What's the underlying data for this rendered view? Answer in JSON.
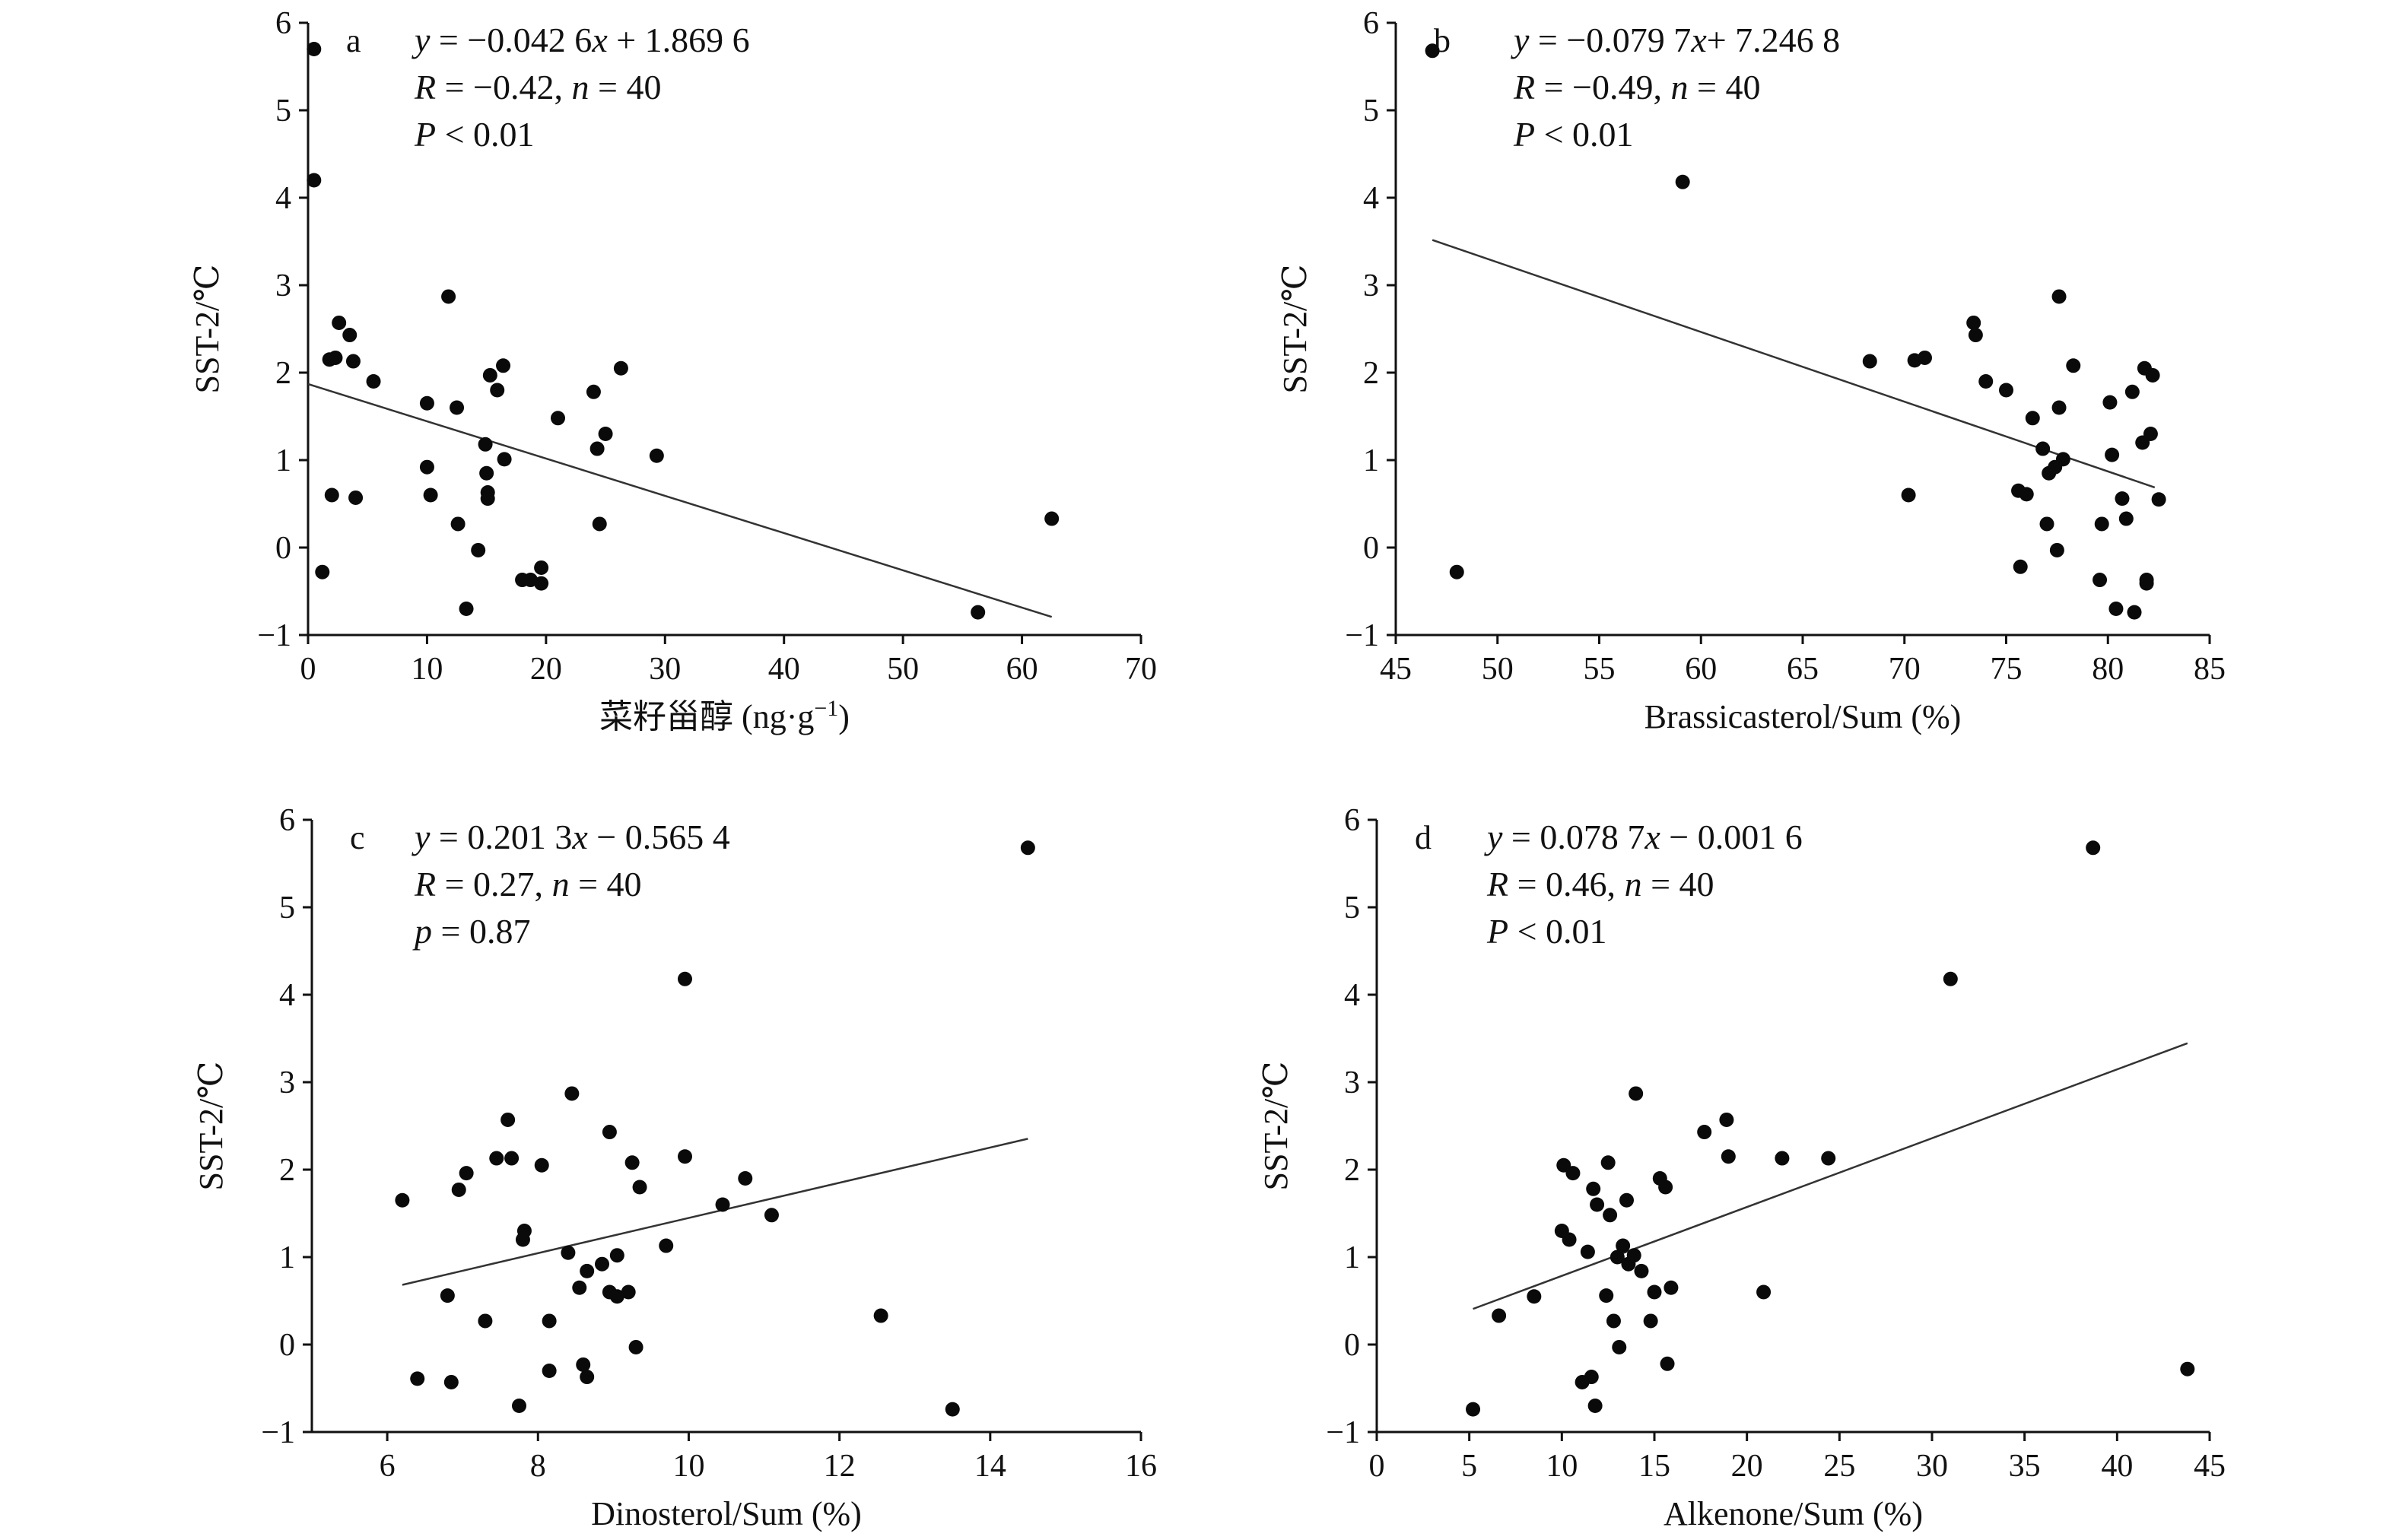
{
  "chart_data": [
    {
      "type": "scatter",
      "panel_label": "a",
      "xlabel": "菜籽甾醇 (ng·g⁻¹)",
      "ylabel": "SST-2/℃",
      "xlim": [
        0,
        70
      ],
      "ylim": [
        -1,
        6
      ],
      "x_ticks": [
        0,
        10,
        20,
        30,
        40,
        50,
        60,
        70
      ],
      "y_ticks": [
        -1,
        0,
        1,
        2,
        3,
        4,
        5,
        6
      ],
      "annotations": [
        "y = −0.042 6x + 1.869 6",
        "R = −0.42, n = 40",
        "P < 0.01"
      ],
      "fit": {
        "slope": -0.0426,
        "intercept": 1.8696,
        "x_range": [
          0,
          62.5
        ]
      },
      "points": [
        {
          "x": 0.5,
          "y": 5.7
        },
        {
          "x": 0.5,
          "y": 4.2
        },
        {
          "x": 1.2,
          "y": -0.28
        },
        {
          "x": 1.8,
          "y": 2.15
        },
        {
          "x": 2.3,
          "y": 2.17
        },
        {
          "x": 2.0,
          "y": 0.6
        },
        {
          "x": 2.6,
          "y": 2.57
        },
        {
          "x": 3.5,
          "y": 2.43
        },
        {
          "x": 3.8,
          "y": 2.13
        },
        {
          "x": 4.0,
          "y": 0.57
        },
        {
          "x": 5.5,
          "y": 1.9
        },
        {
          "x": 10.0,
          "y": 1.65
        },
        {
          "x": 10.0,
          "y": 0.92
        },
        {
          "x": 10.3,
          "y": 0.6
        },
        {
          "x": 11.8,
          "y": 2.87
        },
        {
          "x": 12.5,
          "y": 1.6
        },
        {
          "x": 12.6,
          "y": 0.27
        },
        {
          "x": 13.3,
          "y": -0.7
        },
        {
          "x": 14.3,
          "y": -0.03
        },
        {
          "x": 14.9,
          "y": 1.18
        },
        {
          "x": 15.0,
          "y": 0.85
        },
        {
          "x": 15.1,
          "y": 0.63
        },
        {
          "x": 15.1,
          "y": 0.56
        },
        {
          "x": 15.3,
          "y": 1.97
        },
        {
          "x": 15.9,
          "y": 1.8
        },
        {
          "x": 16.4,
          "y": 2.08
        },
        {
          "x": 16.5,
          "y": 1.01
        },
        {
          "x": 18.0,
          "y": -0.37
        },
        {
          "x": 18.7,
          "y": -0.37
        },
        {
          "x": 19.6,
          "y": -0.23
        },
        {
          "x": 19.6,
          "y": -0.41
        },
        {
          "x": 21.0,
          "y": 1.48
        },
        {
          "x": 24.0,
          "y": 1.78
        },
        {
          "x": 24.3,
          "y": 1.13
        },
        {
          "x": 24.5,
          "y": 0.27
        },
        {
          "x": 25.0,
          "y": 1.3
        },
        {
          "x": 26.3,
          "y": 2.05
        },
        {
          "x": 29.3,
          "y": 1.05
        },
        {
          "x": 56.3,
          "y": -0.74
        },
        {
          "x": 62.5,
          "y": 0.33
        }
      ]
    },
    {
      "type": "scatter",
      "panel_label": "b",
      "xlabel": "Brassicasterol/Sum (%)",
      "ylabel": "SST-2/℃",
      "xlim": [
        45,
        85
      ],
      "ylim": [
        -1,
        6
      ],
      "x_ticks": [
        45,
        50,
        55,
        60,
        65,
        70,
        75,
        80,
        85
      ],
      "y_ticks": [
        -1,
        0,
        1,
        2,
        3,
        4,
        5,
        6
      ],
      "annotations": [
        "y = −0.079 7x+ 7.246 8",
        "R = −0.49, n = 40",
        "P < 0.01"
      ],
      "fit": {
        "slope": -0.0797,
        "intercept": 7.2468,
        "x_range": [
          46.8,
          82.3
        ]
      },
      "points": [
        {
          "x": 46.8,
          "y": 5.68
        },
        {
          "x": 48.0,
          "y": -0.28
        },
        {
          "x": 59.1,
          "y": 4.18
        },
        {
          "x": 68.3,
          "y": 2.13
        },
        {
          "x": 70.2,
          "y": 0.6
        },
        {
          "x": 70.5,
          "y": 2.14
        },
        {
          "x": 71.0,
          "y": 2.17
        },
        {
          "x": 73.4,
          "y": 2.57
        },
        {
          "x": 73.5,
          "y": 2.43
        },
        {
          "x": 74.0,
          "y": 1.9
        },
        {
          "x": 75.0,
          "y": 1.8
        },
        {
          "x": 75.6,
          "y": 0.65
        },
        {
          "x": 75.7,
          "y": -0.22
        },
        {
          "x": 76.0,
          "y": 0.61
        },
        {
          "x": 76.3,
          "y": 1.48
        },
        {
          "x": 76.8,
          "y": 1.13
        },
        {
          "x": 77.0,
          "y": 0.27
        },
        {
          "x": 77.1,
          "y": 0.85
        },
        {
          "x": 77.4,
          "y": 0.92
        },
        {
          "x": 77.5,
          "y": -0.03
        },
        {
          "x": 77.6,
          "y": 2.87
        },
        {
          "x": 77.6,
          "y": 1.6
        },
        {
          "x": 77.8,
          "y": 1.01
        },
        {
          "x": 78.3,
          "y": 2.08
        },
        {
          "x": 79.7,
          "y": 0.27
        },
        {
          "x": 79.6,
          "y": -0.37
        },
        {
          "x": 80.1,
          "y": 1.66
        },
        {
          "x": 80.2,
          "y": 1.06
        },
        {
          "x": 80.4,
          "y": -0.7
        },
        {
          "x": 80.7,
          "y": 0.56
        },
        {
          "x": 80.9,
          "y": 0.33
        },
        {
          "x": 81.2,
          "y": 1.78
        },
        {
          "x": 81.3,
          "y": -0.74
        },
        {
          "x": 81.7,
          "y": 1.2
        },
        {
          "x": 81.8,
          "y": 2.05
        },
        {
          "x": 81.9,
          "y": -0.37
        },
        {
          "x": 81.9,
          "y": -0.41
        },
        {
          "x": 82.1,
          "y": 1.3
        },
        {
          "x": 82.2,
          "y": 1.97
        },
        {
          "x": 82.5,
          "y": 0.55
        }
      ]
    },
    {
      "type": "scatter",
      "panel_label": "c",
      "xlabel": "Dinosterol/Sum (%)",
      "ylabel": "SST-2/℃",
      "xlim": [
        5,
        16
      ],
      "ylim": [
        -1,
        6
      ],
      "x_ticks": [
        6,
        8,
        10,
        12,
        14,
        16
      ],
      "y_ticks": [
        -1,
        0,
        1,
        2,
        3,
        4,
        5,
        6
      ],
      "annotations": [
        "y = 0.201 3x − 0.565 4",
        "R = 0.27, n = 40",
        "p = 0.87"
      ],
      "fit": {
        "slope": 0.2013,
        "intercept": -0.5654,
        "x_range": [
          6.2,
          14.5
        ]
      },
      "points": [
        {
          "x": 14.5,
          "y": 5.68
        },
        {
          "x": 9.95,
          "y": 4.18
        },
        {
          "x": 6.2,
          "y": 1.65
        },
        {
          "x": 6.4,
          "y": -0.39
        },
        {
          "x": 6.8,
          "y": 0.56
        },
        {
          "x": 6.85,
          "y": -0.43
        },
        {
          "x": 6.95,
          "y": 1.77
        },
        {
          "x": 7.05,
          "y": 1.96
        },
        {
          "x": 7.3,
          "y": 0.27
        },
        {
          "x": 7.45,
          "y": 2.13
        },
        {
          "x": 7.6,
          "y": 2.57
        },
        {
          "x": 7.65,
          "y": 2.13
        },
        {
          "x": 7.75,
          "y": -0.7
        },
        {
          "x": 7.8,
          "y": 1.2
        },
        {
          "x": 7.82,
          "y": 1.3
        },
        {
          "x": 8.05,
          "y": 2.05
        },
        {
          "x": 8.15,
          "y": 0.27
        },
        {
          "x": 8.15,
          "y": -0.3
        },
        {
          "x": 8.4,
          "y": 1.05
        },
        {
          "x": 8.45,
          "y": 2.87
        },
        {
          "x": 8.55,
          "y": 0.65
        },
        {
          "x": 8.6,
          "y": -0.23
        },
        {
          "x": 8.65,
          "y": -0.37
        },
        {
          "x": 8.65,
          "y": 0.84
        },
        {
          "x": 8.85,
          "y": 0.92
        },
        {
          "x": 8.95,
          "y": 2.43
        },
        {
          "x": 8.95,
          "y": 0.6
        },
        {
          "x": 9.05,
          "y": 0.55
        },
        {
          "x": 9.05,
          "y": 1.02
        },
        {
          "x": 9.2,
          "y": 0.6
        },
        {
          "x": 9.25,
          "y": 2.08
        },
        {
          "x": 9.3,
          "y": -0.03
        },
        {
          "x": 9.35,
          "y": 1.8
        },
        {
          "x": 9.7,
          "y": 1.13
        },
        {
          "x": 9.95,
          "y": 2.15
        },
        {
          "x": 10.45,
          "y": 1.6
        },
        {
          "x": 10.75,
          "y": 1.9
        },
        {
          "x": 11.1,
          "y": 1.48
        },
        {
          "x": 12.55,
          "y": 0.33
        },
        {
          "x": 13.5,
          "y": -0.74
        }
      ]
    },
    {
      "type": "scatter",
      "panel_label": "d",
      "xlabel": "Alkenone/Sum (%)",
      "ylabel": "SST-2/℃",
      "xlim": [
        0,
        45
      ],
      "ylim": [
        -1,
        6
      ],
      "x_ticks": [
        0,
        5,
        10,
        15,
        20,
        25,
        30,
        35,
        40,
        45
      ],
      "y_ticks": [
        -1,
        0,
        1,
        2,
        3,
        4,
        5,
        6
      ],
      "annotations": [
        "y = 0.078 7x − 0.001 6",
        "R = 0.46, n = 40",
        "P < 0.01"
      ],
      "fit": {
        "slope": 0.0787,
        "intercept": -0.0016,
        "x_range": [
          5.2,
          43.8
        ]
      },
      "points": [
        {
          "x": 38.7,
          "y": 5.68
        },
        {
          "x": 31.0,
          "y": 4.18
        },
        {
          "x": 43.8,
          "y": -0.28
        },
        {
          "x": 5.2,
          "y": -0.74
        },
        {
          "x": 6.6,
          "y": 0.33
        },
        {
          "x": 8.5,
          "y": 0.55
        },
        {
          "x": 10.0,
          "y": 1.3
        },
        {
          "x": 10.1,
          "y": 2.05
        },
        {
          "x": 10.4,
          "y": 1.2
        },
        {
          "x": 10.6,
          "y": 1.96
        },
        {
          "x": 11.1,
          "y": -0.43
        },
        {
          "x": 11.4,
          "y": 1.06
        },
        {
          "x": 11.6,
          "y": -0.37
        },
        {
          "x": 11.7,
          "y": 1.78
        },
        {
          "x": 11.8,
          "y": -0.7
        },
        {
          "x": 11.9,
          "y": 1.6
        },
        {
          "x": 12.4,
          "y": 0.56
        },
        {
          "x": 12.5,
          "y": 2.08
        },
        {
          "x": 12.6,
          "y": 1.48
        },
        {
          "x": 12.8,
          "y": 0.27
        },
        {
          "x": 13.0,
          "y": 1.0
        },
        {
          "x": 13.1,
          "y": -0.03
        },
        {
          "x": 13.3,
          "y": 1.13
        },
        {
          "x": 13.5,
          "y": 1.65
        },
        {
          "x": 13.6,
          "y": 0.92
        },
        {
          "x": 14.0,
          "y": 2.87
        },
        {
          "x": 14.3,
          "y": 0.84
        },
        {
          "x": 14.8,
          "y": 0.27
        },
        {
          "x": 15.0,
          "y": 0.6
        },
        {
          "x": 15.3,
          "y": 1.9
        },
        {
          "x": 15.6,
          "y": 1.8
        },
        {
          "x": 15.7,
          "y": -0.22
        },
        {
          "x": 15.9,
          "y": 0.65
        },
        {
          "x": 17.7,
          "y": 2.43
        },
        {
          "x": 18.9,
          "y": 2.57
        },
        {
          "x": 19.0,
          "y": 2.15
        },
        {
          "x": 20.9,
          "y": 0.6
        },
        {
          "x": 21.9,
          "y": 2.13
        },
        {
          "x": 24.4,
          "y": 2.13
        },
        {
          "x": 13.9,
          "y": 1.02
        }
      ]
    }
  ]
}
